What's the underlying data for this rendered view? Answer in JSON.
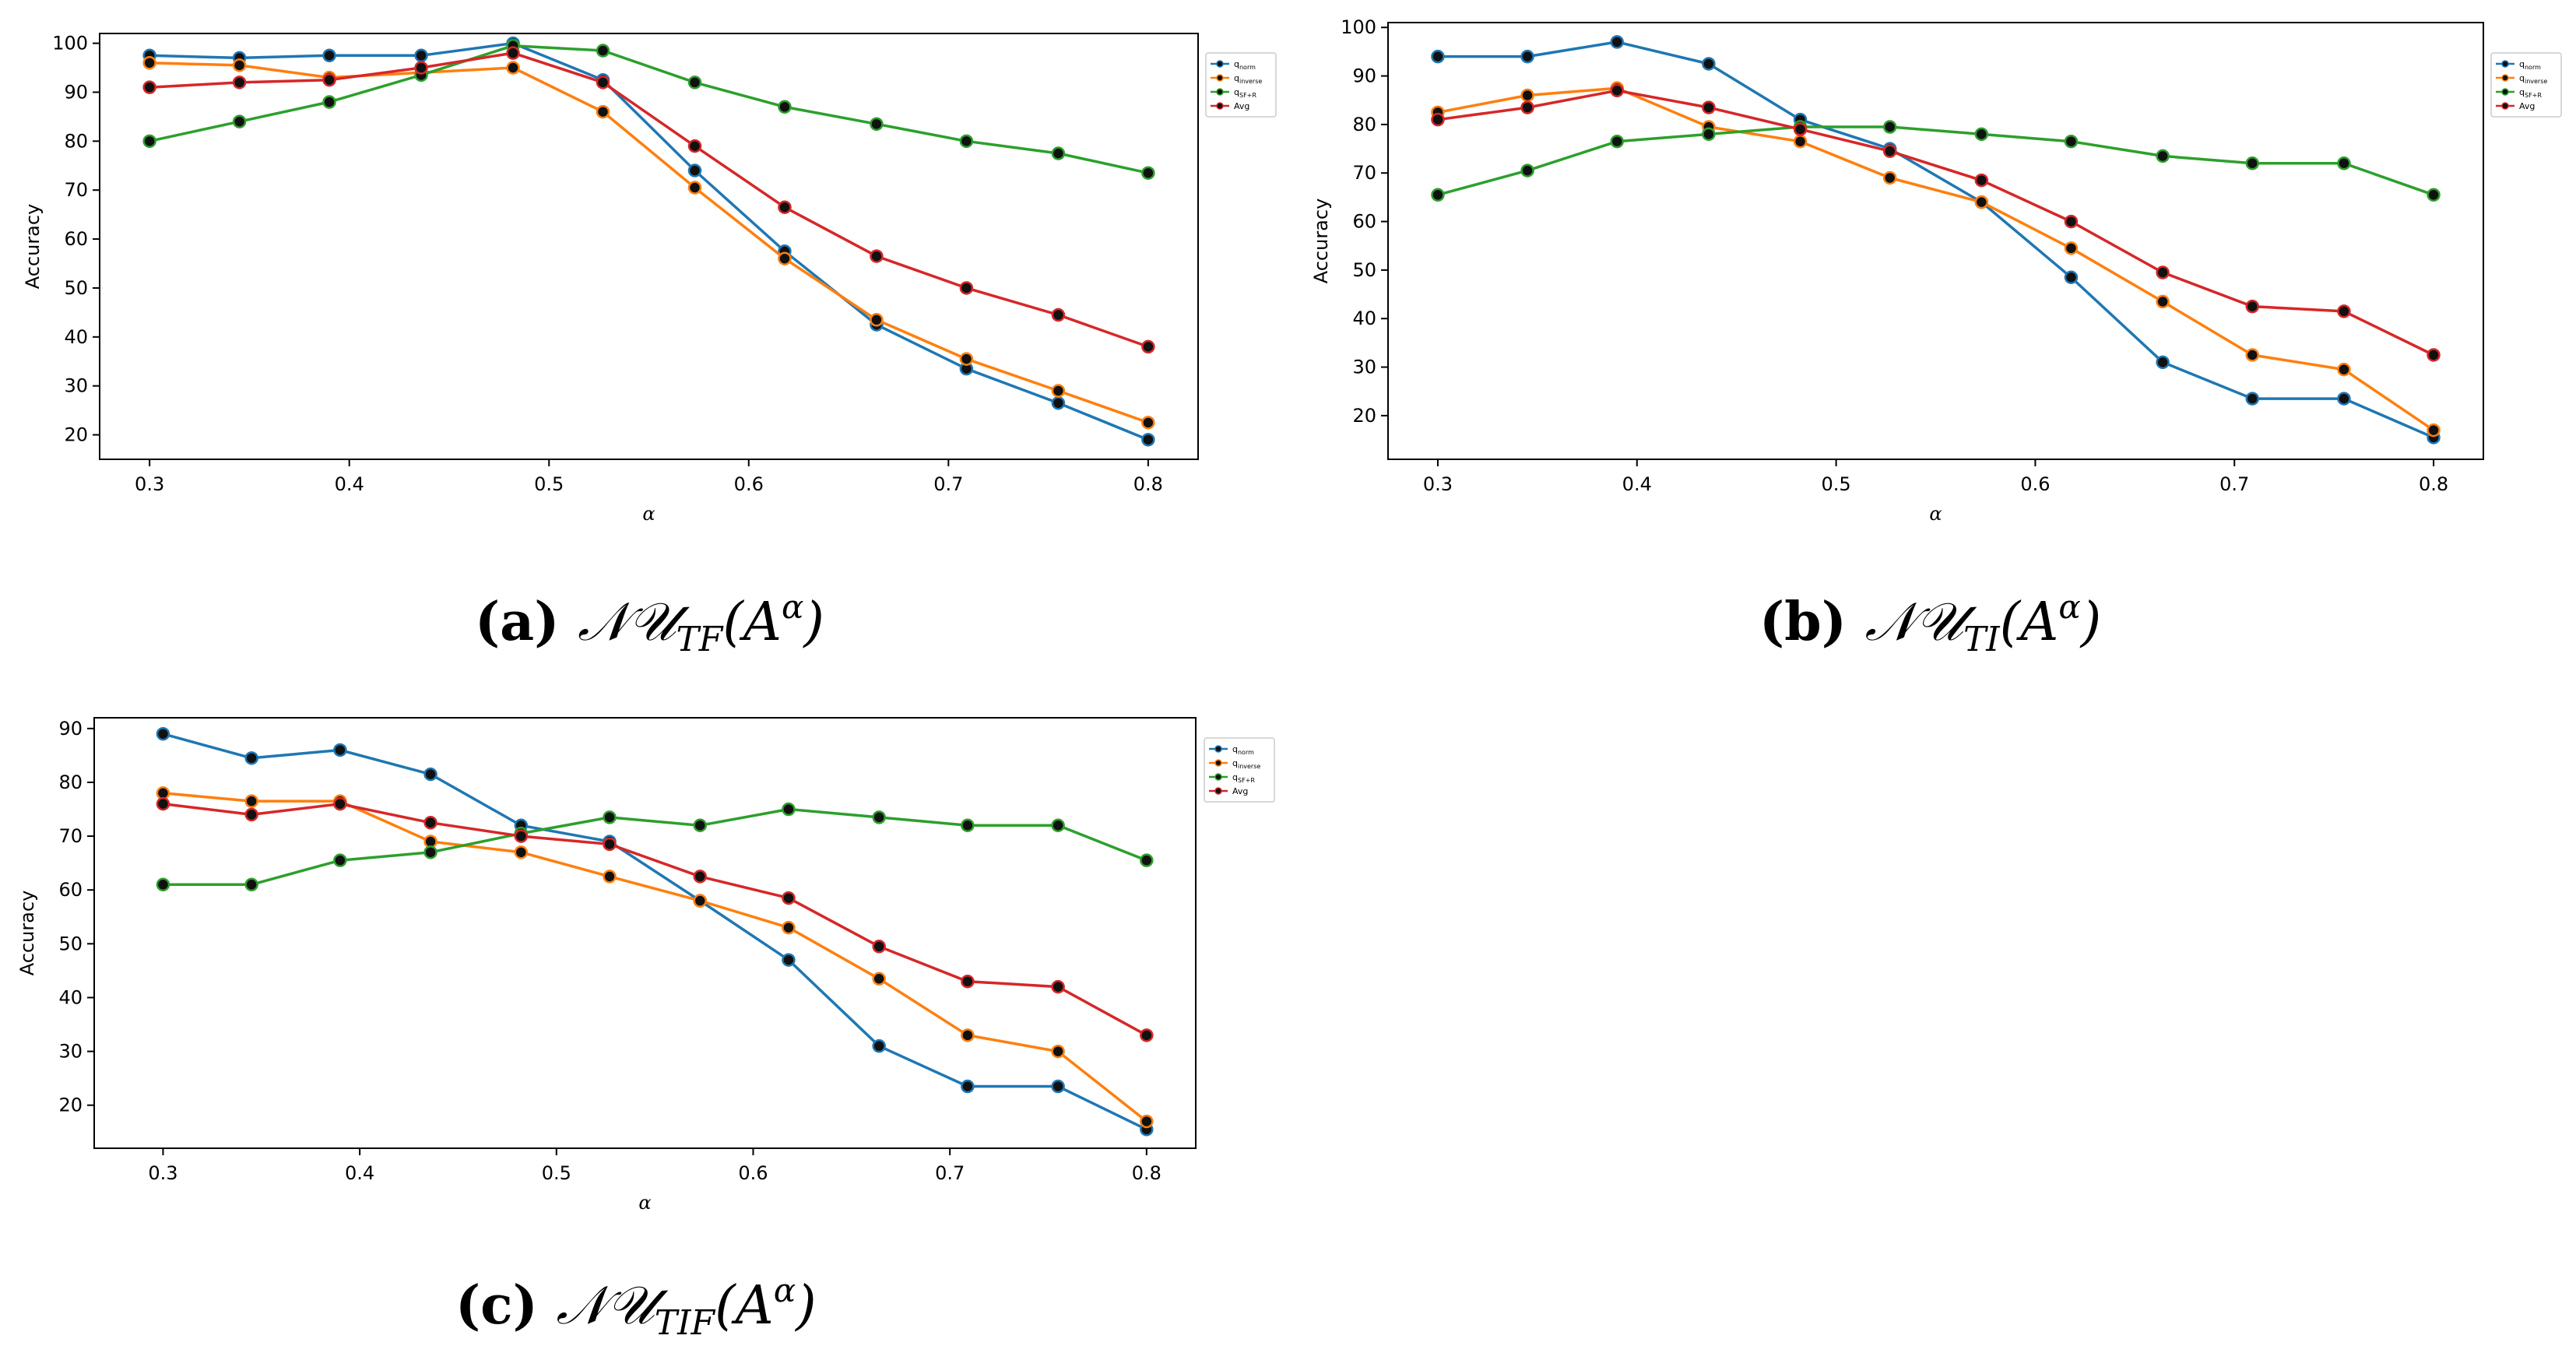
{
  "colors": {
    "q_norm": "#1f77b4",
    "q_inverse": "#ff7f0e",
    "q_sf": "#2ca02c",
    "avg": "#d62728",
    "marker_edge": "#111111"
  },
  "chart_data": [
    {
      "id": "a",
      "type": "line",
      "caption_letter": "(a)",
      "caption_expr": "𝒩𝒰",
      "caption_sub": "TF",
      "caption_arg": "(A",
      "caption_sup": "α",
      "caption_close": ")",
      "xlabel": "α",
      "ylabel": "Accuracy",
      "xlim": [
        0.275,
        0.825
      ],
      "ylim": [
        15,
        102
      ],
      "xticks": [
        0.3,
        0.4,
        0.5,
        0.6,
        0.7,
        0.8
      ],
      "xtick_labels": [
        "0.3",
        "0.4",
        "0.5",
        "0.6",
        "0.7",
        "0.8"
      ],
      "yticks": [
        20,
        30,
        40,
        50,
        60,
        70,
        80,
        90,
        100
      ],
      "ytick_labels": [
        "20",
        "30",
        "40",
        "50",
        "60",
        "70",
        "80",
        "90",
        "100"
      ],
      "x": [
        0.3,
        0.345,
        0.39,
        0.436,
        0.482,
        0.527,
        0.573,
        0.618,
        0.664,
        0.709,
        0.755,
        0.8
      ],
      "series": [
        {
          "name": "q_norm",
          "label": "q",
          "label_sub": "norm",
          "color_key": "q_norm",
          "values": [
            97.5,
            97,
            97.5,
            97.5,
            100,
            92.5,
            74,
            57.5,
            42.5,
            33.5,
            26.5,
            19
          ]
        },
        {
          "name": "q_inverse",
          "label": "q",
          "label_sub": "inverse",
          "color_key": "q_inverse",
          "values": [
            96,
            95.5,
            93,
            94,
            95,
            86,
            70.5,
            56,
            43.5,
            35.5,
            29,
            22.5
          ]
        },
        {
          "name": "q_sf",
          "label": "q",
          "label_sub": "SF+R",
          "color_key": "q_sf",
          "values": [
            80,
            84,
            88,
            93.5,
            99.5,
            98.5,
            92,
            87,
            83.5,
            80,
            77.5,
            73.5
          ]
        },
        {
          "name": "Avg",
          "label": "Avg",
          "label_sub": "",
          "color_key": "avg",
          "values": [
            91,
            92,
            92.5,
            95,
            98,
            92,
            79,
            66.5,
            56.5,
            50,
            44.5,
            38
          ]
        }
      ]
    },
    {
      "id": "b",
      "type": "line",
      "caption_letter": "(b)",
      "caption_expr": "𝒩𝒰",
      "caption_sub": "TI",
      "caption_arg": "(A",
      "caption_sup": "α",
      "caption_close": ")",
      "xlabel": "α",
      "ylabel": "Accuracy",
      "xlim": [
        0.275,
        0.825
      ],
      "ylim": [
        11,
        101
      ],
      "xticks": [
        0.3,
        0.4,
        0.5,
        0.6,
        0.7,
        0.8
      ],
      "xtick_labels": [
        "0.3",
        "0.4",
        "0.5",
        "0.6",
        "0.7",
        "0.8"
      ],
      "yticks": [
        20,
        30,
        40,
        50,
        60,
        70,
        80,
        90,
        100
      ],
      "ytick_labels": [
        "20",
        "30",
        "40",
        "50",
        "60",
        "70",
        "80",
        "90",
        "100"
      ],
      "x": [
        0.3,
        0.345,
        0.39,
        0.436,
        0.482,
        0.527,
        0.573,
        0.618,
        0.664,
        0.709,
        0.755,
        0.8
      ],
      "series": [
        {
          "name": "q_norm",
          "label": "q",
          "label_sub": "norm",
          "color_key": "q_norm",
          "values": [
            94,
            94,
            97,
            92.5,
            81,
            75,
            64,
            48.5,
            31,
            23.5,
            23.5,
            15.5
          ]
        },
        {
          "name": "q_inverse",
          "label": "q",
          "label_sub": "inverse",
          "color_key": "q_inverse",
          "values": [
            82.5,
            86,
            87.5,
            79.5,
            76.5,
            69,
            64,
            54.5,
            43.5,
            32.5,
            29.5,
            17
          ]
        },
        {
          "name": "q_sf",
          "label": "q",
          "label_sub": "SF+R",
          "color_key": "q_sf",
          "values": [
            65.5,
            70.5,
            76.5,
            78,
            79.5,
            79.5,
            78,
            76.5,
            73.5,
            72,
            72,
            65.5
          ]
        },
        {
          "name": "Avg",
          "label": "Avg",
          "label_sub": "",
          "color_key": "avg",
          "values": [
            81,
            83.5,
            87,
            83.5,
            79,
            74.5,
            68.5,
            60,
            49.5,
            42.5,
            41.5,
            32.5
          ]
        }
      ]
    },
    {
      "id": "c",
      "type": "line",
      "caption_letter": "(c)",
      "caption_expr": "𝒩𝒰",
      "caption_sub": "TIF",
      "caption_arg": "(A",
      "caption_sup": "α",
      "caption_close": ")",
      "xlabel": "α",
      "ylabel": "Accuracy",
      "xlim": [
        0.265,
        0.825
      ],
      "ylim": [
        12,
        92
      ],
      "xticks": [
        0.3,
        0.4,
        0.5,
        0.6,
        0.7,
        0.8
      ],
      "xtick_labels": [
        "0.3",
        "0.4",
        "0.5",
        "0.6",
        "0.7",
        "0.8"
      ],
      "yticks": [
        20,
        30,
        40,
        50,
        60,
        70,
        80,
        90
      ],
      "ytick_labels": [
        "20",
        "30",
        "40",
        "50",
        "60",
        "70",
        "80",
        "90"
      ],
      "x": [
        0.3,
        0.345,
        0.39,
        0.436,
        0.482,
        0.527,
        0.573,
        0.618,
        0.664,
        0.709,
        0.755,
        0.8
      ],
      "series": [
        {
          "name": "q_norm",
          "label": "q",
          "label_sub": "norm",
          "color_key": "q_norm",
          "values": [
            89,
            84.5,
            86,
            81.5,
            72,
            69,
            58,
            47,
            31,
            23.5,
            23.5,
            15.5
          ]
        },
        {
          "name": "q_inverse",
          "label": "q",
          "label_sub": "inverse",
          "color_key": "q_inverse",
          "values": [
            78,
            76.5,
            76.5,
            69,
            67,
            62.5,
            58,
            53,
            43.5,
            33,
            30,
            17
          ]
        },
        {
          "name": "q_sf",
          "label": "q",
          "label_sub": "SF+R",
          "color_key": "q_sf",
          "values": [
            61,
            61,
            65.5,
            67,
            70.5,
            73.5,
            72,
            75,
            73.5,
            72,
            72,
            65.5
          ]
        },
        {
          "name": "Avg",
          "label": "Avg",
          "label_sub": "",
          "color_key": "avg",
          "values": [
            76,
            74,
            76,
            72.5,
            70,
            68.5,
            62.5,
            58.5,
            49.5,
            43,
            42,
            33
          ]
        }
      ]
    }
  ]
}
